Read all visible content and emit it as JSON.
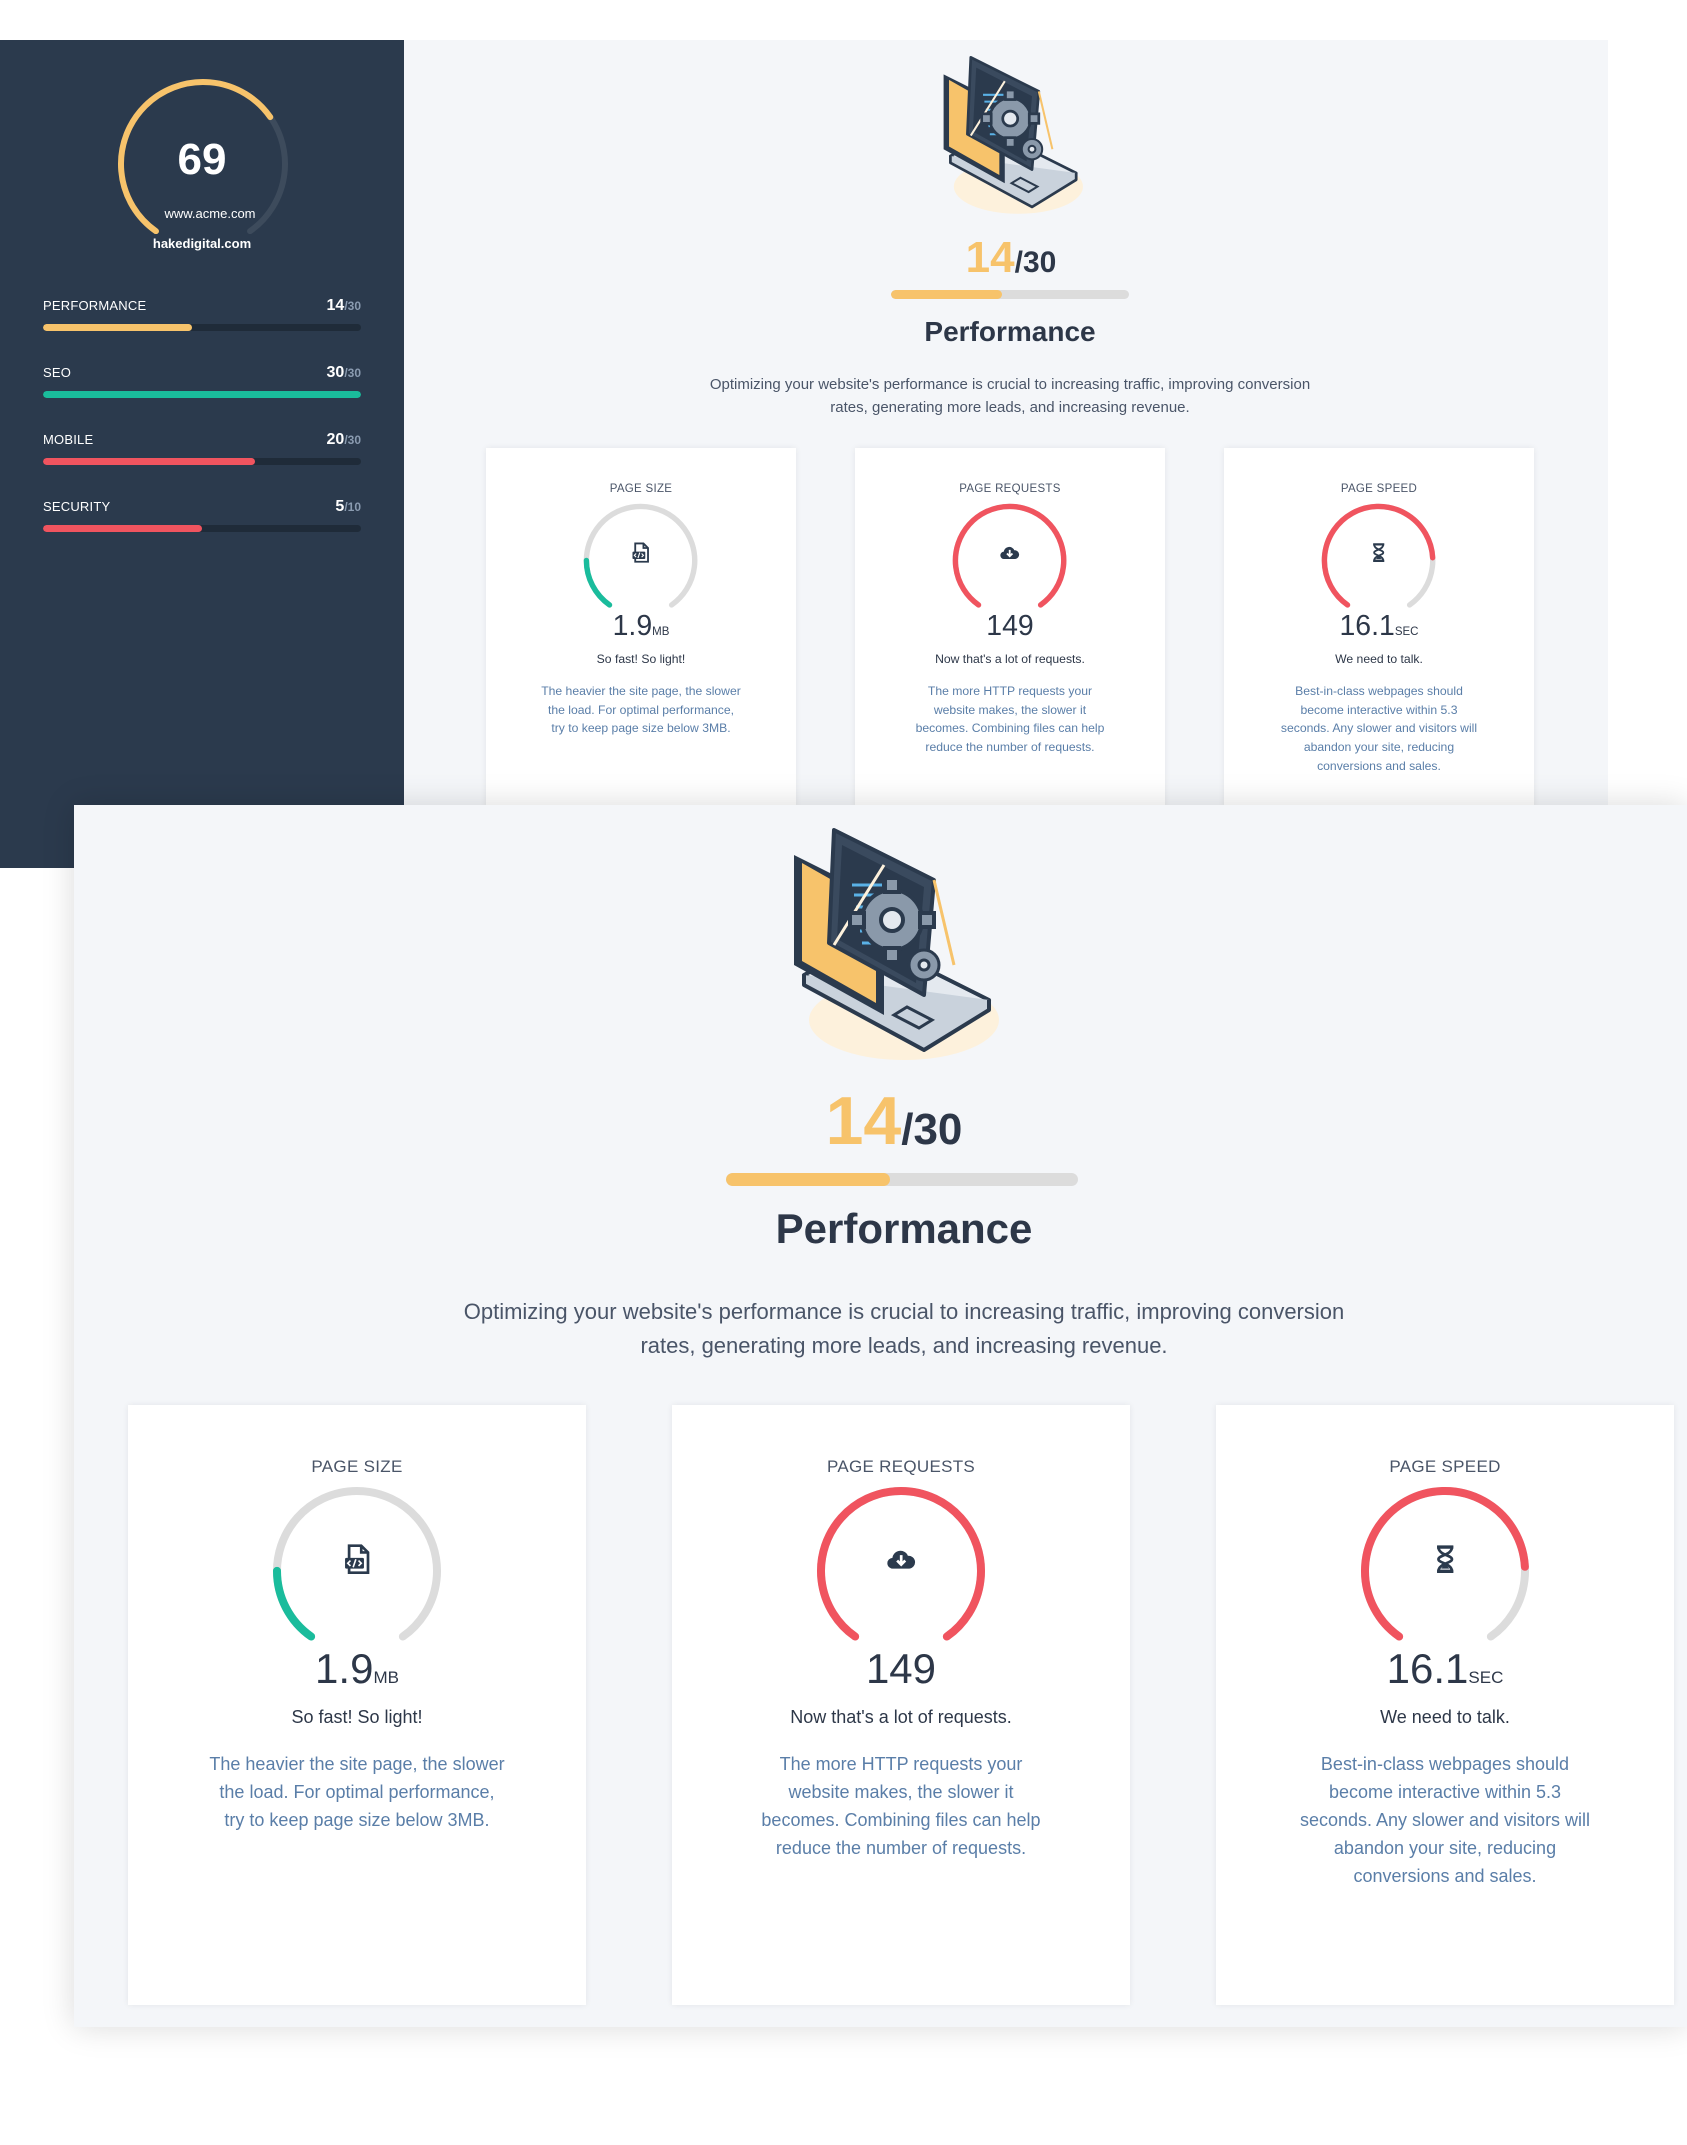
{
  "sidebar": {
    "overall_score": "69",
    "website": "www.acme.com",
    "company": "hakedigital.com",
    "categories": [
      {
        "label": "PERFORMANCE",
        "score": "14",
        "max": "/30",
        "fraction": 0.467,
        "color": "#f7c36b"
      },
      {
        "label": "SEO",
        "score": "30",
        "max": "/30",
        "fraction": 1.0,
        "color": "#1abc9c"
      },
      {
        "label": "MOBILE",
        "score": "20",
        "max": "/30",
        "fraction": 0.667,
        "color": "#f0545f"
      },
      {
        "label": "SECURITY",
        "score": "5",
        "max": "/10",
        "fraction": 0.5,
        "color": "#f0545f"
      }
    ]
  },
  "section": {
    "score": "14",
    "max": "/30",
    "fraction": 0.467,
    "title": "Performance",
    "description_line1": "Optimizing your website's performance is crucial to increasing traffic, improving conversion",
    "description_line2": "rates, generating more leads, and increasing revenue."
  },
  "cards": [
    {
      "title": "PAGE SIZE",
      "icon": "code-file-icon",
      "value": "1.9",
      "unit": "MB",
      "verdict": "So fast! So light!",
      "gauge_fraction": 0.19,
      "gauge_color": "#1abc9c",
      "desc_lines": [
        "The heavier the site page, the slower",
        "the load. For optimal performance,",
        "try to keep page size below 3MB."
      ]
    },
    {
      "title": "PAGE REQUESTS",
      "icon": "cloud-download-icon",
      "value": "149",
      "unit": "",
      "verdict": "Now that's a lot of requests.",
      "gauge_fraction": 1.0,
      "gauge_color": "#f0545f",
      "desc_lines": [
        "The more HTTP requests your",
        "website makes, the slower it",
        "becomes. Combining files can help",
        "reduce the number of requests."
      ]
    },
    {
      "title": "PAGE SPEED",
      "icon": "hourglass-icon",
      "value": "16.1",
      "unit": "SEC",
      "verdict": "We need to talk.",
      "gauge_fraction": 0.8,
      "gauge_color": "#f0545f",
      "desc_lines": [
        "Best-in-class webpages should",
        "become interactive within 5.3",
        "seconds. Any slower and visitors will",
        "abandon your site, reducing",
        "conversions and sales."
      ]
    }
  ],
  "colors": {
    "sidebar_bg": "#2b3a4d",
    "accent_yellow": "#f7c36b",
    "accent_teal": "#1abc9c",
    "accent_red": "#f0545f",
    "track_gray": "#dcdcdc"
  }
}
